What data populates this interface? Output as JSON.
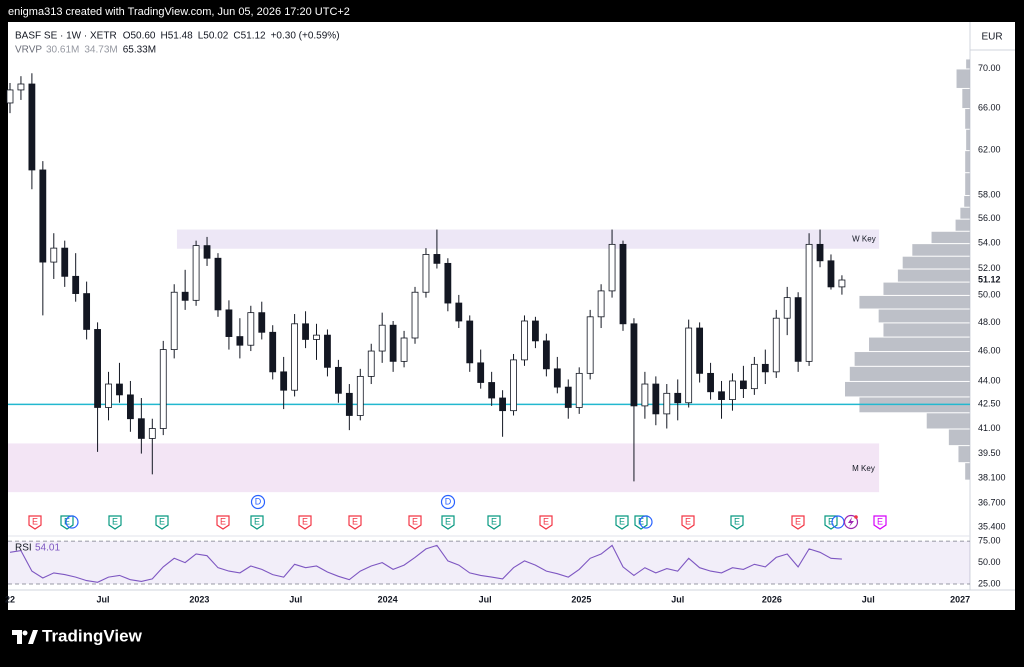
{
  "header": {
    "caption": "enigma313 created with TradingView.com, Jun 05, 2026 17:20 UTC+2"
  },
  "legend": {
    "symbol": "BASF SE · 1W · XETR",
    "ohlc": [
      "O50.60",
      "H51.48",
      "L50.02",
      "C51.12"
    ],
    "change": "+0.30 (+0.59%)",
    "indicator": "VRVP",
    "indicator_values": [
      "30.61M",
      "34.73M",
      "65.33M"
    ]
  },
  "footer": {
    "brand": "TradingView"
  },
  "chart_data": {
    "type": "candlestick",
    "currency": "EUR",
    "log_scale": true,
    "grid": false,
    "ylim": [
      35,
      75
    ],
    "yticks": [
      {
        "value": 70,
        "label": "70.00"
      },
      {
        "value": 66,
        "label": "66.00"
      },
      {
        "value": 62,
        "label": "62.00"
      },
      {
        "value": 58,
        "label": "58.00"
      },
      {
        "value": 56,
        "label": "56.00"
      },
      {
        "value": 54,
        "label": "54.00"
      },
      {
        "value": 52,
        "label": "52.00"
      },
      {
        "value": 50,
        "label": "50.00"
      },
      {
        "value": 48,
        "label": "48.00"
      },
      {
        "value": 46,
        "label": "46.00"
      },
      {
        "value": 44,
        "label": "44.00"
      },
      {
        "value": 42.5,
        "label": "42.50"
      },
      {
        "value": 41,
        "label": "41.00"
      },
      {
        "value": 39.5,
        "label": "39.50"
      },
      {
        "value": 38.1,
        "label": "38.100"
      },
      {
        "value": 36.7,
        "label": "36.700"
      },
      {
        "value": 35.4,
        "label": "35.400"
      }
    ],
    "xlim": [
      0,
      87.7
    ],
    "xticks": [
      {
        "value": 0,
        "label": "22"
      },
      {
        "value": 8.5,
        "label": "Jul"
      },
      {
        "value": 17.3,
        "label": "2023"
      },
      {
        "value": 26.1,
        "label": "Jul"
      },
      {
        "value": 34.5,
        "label": "2024"
      },
      {
        "value": 43.4,
        "label": "Jul"
      },
      {
        "value": 52.2,
        "label": "2025"
      },
      {
        "value": 61,
        "label": "Jul"
      },
      {
        "value": 69.6,
        "label": "2026"
      },
      {
        "value": 78.4,
        "label": "Jul"
      },
      {
        "value": 86.8,
        "label": "2027"
      }
    ],
    "up_color": "#ffffff",
    "down_color": "#131722",
    "candles": [
      [
        66.5,
        68.5,
        65.5,
        67.8
      ],
      [
        67.8,
        69.2,
        66.8,
        68.4
      ],
      [
        68.4,
        69.5,
        58.5,
        60.2
      ],
      [
        60.2,
        61.0,
        48.5,
        52.5
      ],
      [
        52.5,
        54.8,
        51.2,
        53.6
      ],
      [
        53.6,
        54.2,
        50.6,
        51.4
      ],
      [
        51.4,
        53.2,
        49.5,
        50.1
      ],
      [
        50.1,
        51.0,
        46.8,
        47.5
      ],
      [
        47.5,
        48.0,
        39.6,
        42.3
      ],
      [
        42.3,
        44.6,
        41.5,
        43.8
      ],
      [
        43.8,
        45.2,
        42.6,
        43.1
      ],
      [
        43.1,
        44.0,
        40.8,
        41.6
      ],
      [
        41.6,
        42.9,
        39.5,
        40.4
      ],
      [
        40.4,
        41.6,
        38.3,
        41.0
      ],
      [
        41.0,
        46.7,
        40.6,
        46.1
      ],
      [
        46.1,
        50.8,
        45.5,
        50.2
      ],
      [
        50.2,
        51.9,
        48.9,
        49.6
      ],
      [
        49.6,
        54.2,
        49.2,
        53.8
      ],
      [
        53.8,
        54.5,
        52.2,
        52.8
      ],
      [
        52.8,
        53.2,
        48.4,
        48.9
      ],
      [
        48.9,
        49.6,
        46.1,
        47.0
      ],
      [
        47.0,
        48.3,
        45.5,
        46.4
      ],
      [
        46.4,
        49.2,
        46.0,
        48.7
      ],
      [
        48.7,
        49.5,
        46.8,
        47.3
      ],
      [
        47.3,
        47.8,
        44.1,
        44.6
      ],
      [
        44.6,
        45.6,
        42.2,
        43.4
      ],
      [
        43.4,
        48.6,
        43.0,
        47.9
      ],
      [
        47.9,
        48.8,
        46.2,
        46.8
      ],
      [
        46.8,
        47.9,
        45.4,
        47.1
      ],
      [
        47.1,
        47.5,
        44.3,
        44.9
      ],
      [
        44.9,
        45.4,
        42.6,
        43.2
      ],
      [
        43.2,
        43.8,
        40.9,
        41.8
      ],
      [
        41.8,
        44.8,
        41.5,
        44.3
      ],
      [
        44.3,
        46.5,
        43.8,
        46.0
      ],
      [
        46.0,
        48.7,
        45.2,
        47.8
      ],
      [
        47.8,
        48.1,
        44.6,
        45.3
      ],
      [
        45.3,
        47.4,
        44.9,
        46.9
      ],
      [
        46.9,
        50.6,
        46.5,
        50.2
      ],
      [
        50.2,
        53.6,
        49.8,
        53.1
      ],
      [
        53.1,
        55.1,
        52.0,
        52.4
      ],
      [
        52.4,
        52.8,
        48.8,
        49.4
      ],
      [
        49.4,
        50.0,
        47.6,
        48.1
      ],
      [
        48.1,
        48.5,
        44.6,
        45.2
      ],
      [
        45.2,
        46.1,
        43.5,
        43.9
      ],
      [
        43.9,
        44.6,
        42.4,
        42.9
      ],
      [
        42.9,
        43.4,
        40.5,
        42.1
      ],
      [
        42.1,
        45.8,
        41.8,
        45.4
      ],
      [
        45.4,
        48.5,
        45.0,
        48.1
      ],
      [
        48.1,
        48.4,
        46.2,
        46.7
      ],
      [
        46.7,
        47.2,
        44.3,
        44.8
      ],
      [
        44.8,
        45.6,
        43.2,
        43.6
      ],
      [
        43.6,
        44.1,
        41.6,
        42.3
      ],
      [
        42.3,
        44.9,
        41.9,
        44.5
      ],
      [
        44.5,
        48.9,
        44.1,
        48.4
      ],
      [
        48.4,
        50.8,
        47.6,
        50.3
      ],
      [
        50.3,
        55.1,
        49.8,
        53.9
      ],
      [
        53.9,
        54.2,
        47.4,
        47.9
      ],
      [
        47.9,
        48.3,
        37.9,
        42.4
      ],
      [
        42.4,
        44.6,
        41.6,
        43.8
      ],
      [
        43.8,
        44.3,
        41.2,
        41.9
      ],
      [
        41.9,
        43.8,
        41.0,
        43.2
      ],
      [
        43.2,
        44.1,
        41.5,
        42.6
      ],
      [
        42.6,
        48.2,
        42.3,
        47.6
      ],
      [
        47.6,
        48.0,
        43.9,
        44.5
      ],
      [
        44.5,
        45.2,
        42.8,
        43.3
      ],
      [
        43.3,
        44.0,
        41.6,
        42.8
      ],
      [
        42.8,
        44.5,
        42.1,
        44.0
      ],
      [
        44.0,
        45.0,
        42.9,
        43.5
      ],
      [
        43.5,
        45.6,
        43.1,
        45.1
      ],
      [
        45.1,
        46.1,
        43.8,
        44.6
      ],
      [
        44.6,
        48.9,
        44.2,
        48.3
      ],
      [
        48.3,
        50.6,
        47.1,
        49.8
      ],
      [
        49.8,
        50.2,
        44.6,
        45.3
      ],
      [
        45.3,
        54.8,
        45.0,
        53.9
      ],
      [
        53.9,
        55.1,
        52.1,
        52.6
      ],
      [
        52.6,
        53.1,
        50.4,
        50.6
      ],
      [
        50.6,
        51.48,
        50.02,
        51.12
      ]
    ],
    "hline": {
      "value": 42.5,
      "color": "#22b8cf"
    },
    "zones": [
      {
        "label": "W Key",
        "from": 15.25,
        "to": 79.4,
        "low": 53.55,
        "high": 55.1,
        "color": "#ede7f6"
      },
      {
        "label": "M Key",
        "from": -0.2,
        "to": 79.4,
        "low": 37.3,
        "high": 40.1,
        "color": "#f3e5f5"
      }
    ],
    "volume_profile": {
      "color": "#b2b5be",
      "levels": [
        38,
        39,
        40,
        41,
        42,
        43,
        44,
        45,
        46,
        47,
        48,
        49,
        50,
        51,
        52,
        53,
        54,
        55,
        56,
        57,
        58,
        60,
        62,
        64,
        66,
        68,
        70
      ],
      "volumes": [
        5,
        12,
        22,
        45,
        115,
        130,
        125,
        120,
        105,
        90,
        95,
        115,
        90,
        75,
        70,
        60,
        40,
        15,
        10,
        6,
        5,
        5,
        4,
        5,
        8,
        14,
        4
      ]
    },
    "events": [
      {
        "label": "E",
        "color": "#f23645"
      },
      {
        "label": "E",
        "color": "#089981"
      },
      {
        "label": "E",
        "color": "#089981"
      },
      {
        "label": "E",
        "color": "#089981"
      },
      {
        "label": "E",
        "color": "#f23645"
      },
      {
        "label": "E",
        "color": "#089981"
      },
      {
        "label": "E",
        "color": "#f23645"
      },
      {
        "label": "E",
        "color": "#f23645"
      },
      {
        "label": "E",
        "color": "#f23645"
      },
      {
        "label": "E",
        "color": "#089981"
      },
      {
        "label": "E",
        "color": "#089981"
      },
      {
        "label": "E",
        "color": "#f23645"
      },
      {
        "label": "E",
        "color": "#089981"
      },
      {
        "label": "E",
        "color": "#089981"
      },
      {
        "label": "E",
        "color": "#f23645"
      },
      {
        "label": "E",
        "color": "#089981"
      },
      {
        "label": "E",
        "color": "#f23645"
      },
      {
        "label": "E",
        "color": "#089981"
      },
      {
        "label": "E",
        "color": "#d500f9"
      },
      {
        "label": "D",
        "color": "#2962ff"
      },
      {
        "label": "D",
        "color": "#2962ff"
      }
    ],
    "rsi": {
      "name": "RSI",
      "last": "54.01",
      "color": "#7e57c2",
      "ylim": [
        18,
        81
      ],
      "yticks": [
        {
          "value": 75,
          "label": "75.00"
        },
        {
          "value": 50,
          "label": "50.00"
        },
        {
          "value": 25,
          "label": "25.00"
        }
      ],
      "values": [
        62,
        64,
        40,
        32,
        38,
        36,
        33,
        29,
        27,
        33,
        35,
        30,
        28,
        31,
        45,
        55,
        50,
        60,
        58,
        44,
        40,
        38,
        46,
        42,
        36,
        33,
        48,
        44,
        46,
        39,
        34,
        30,
        40,
        46,
        50,
        42,
        47,
        56,
        66,
        70,
        52,
        47,
        38,
        35,
        33,
        31,
        44,
        52,
        47,
        40,
        37,
        33,
        42,
        55,
        60,
        70,
        45,
        35,
        44,
        38,
        43,
        40,
        55,
        44,
        40,
        38,
        44,
        42,
        48,
        45,
        56,
        60,
        45,
        66,
        62,
        55,
        54.01
      ]
    }
  }
}
